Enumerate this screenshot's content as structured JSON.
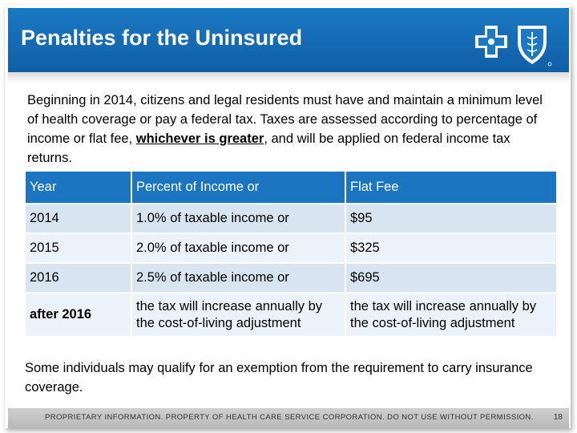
{
  "header": {
    "title": "Penalties for the Uninsured"
  },
  "intro": {
    "before": "Beginning in 2014, citizens and legal residents must have and maintain a minimum level of health coverage or pay a federal tax. Taxes are assessed according to percentage of income or flat fee, ",
    "emphasis": "whichever is greater",
    "after": ", and will be applied on federal income tax returns."
  },
  "table": {
    "headers": [
      "Year",
      "Percent of Income or",
      "Flat Fee"
    ],
    "rows": [
      [
        "2014",
        "1.0% of taxable income or",
        "$95"
      ],
      [
        "2015",
        "2.0% of taxable income or",
        "$325"
      ],
      [
        "2016",
        "2.5% of taxable income or",
        "$695"
      ],
      [
        "after 2016",
        "the tax will increase annually by the cost-of-living adjustment",
        "the tax will increase annually by the cost-of-living adjustment"
      ]
    ]
  },
  "note": "Some individuals may qualify for an exemption from the requirement to carry insurance coverage.",
  "footer": {
    "text": "PROPRIETARY INFORMATION. PROPERTY OF HEALTH CARE SERVICE CORPORATION. DO NOT USE WITHOUT PERMISSION.",
    "page": "18"
  },
  "colors": {
    "title_bar": "#1b78c3",
    "table_header": "#1b75c0",
    "row_dark": "#d8e5f1",
    "row_light": "#ecf2f9"
  },
  "icons": [
    "blue-cross-icon",
    "blue-shield-icon"
  ]
}
